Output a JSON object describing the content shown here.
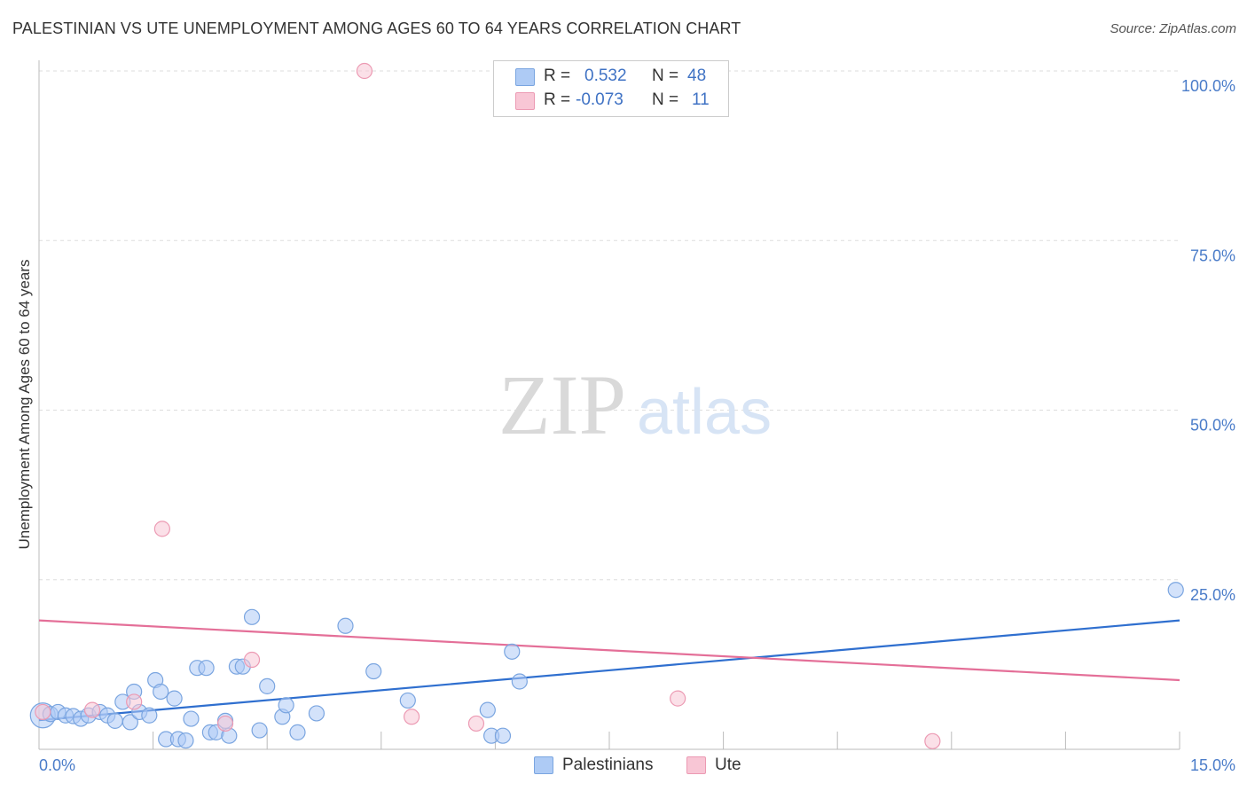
{
  "header": {
    "title": "PALESTINIAN VS UTE UNEMPLOYMENT AMONG AGES 60 TO 64 YEARS CORRELATION CHART",
    "source": "Source: ZipAtlas.com"
  },
  "watermark": {
    "zip": "ZIP",
    "atlas": "atlas"
  },
  "colors": {
    "blue_fill": "#aecbf5",
    "blue_stroke": "#7aa5e0",
    "blue_line": "#2f6fcf",
    "pink_fill": "#f8c6d5",
    "pink_stroke": "#ec9ab3",
    "pink_line": "#e46f98",
    "tick_text": "#4a7cc9",
    "grid": "#dddddd"
  },
  "legend": {
    "series": [
      {
        "r_label": "R =",
        "r_value": "0.532",
        "n_label": "N =",
        "n_value": "48"
      },
      {
        "r_label": "R =",
        "r_value": "-0.073",
        "n_label": "N =",
        "n_value": "11"
      }
    ],
    "bottom": [
      "Palestinians",
      "Ute"
    ]
  },
  "chart_data": {
    "type": "scatter",
    "title": "PALESTINIAN VS UTE UNEMPLOYMENT AMONG AGES 60 TO 64 YEARS CORRELATION CHART",
    "xlabel": "",
    "ylabel": "Unemployment Among Ages 60 to 64 years",
    "xlim": [
      0,
      15
    ],
    "ylim": [
      0,
      100
    ],
    "x_tick_labels": [
      "0.0%",
      "15.0%"
    ],
    "y_ticks": [
      25,
      50,
      75,
      100
    ],
    "y_tick_labels": [
      "25.0%",
      "50.0%",
      "75.0%",
      "100.0%"
    ],
    "grid": true,
    "legend_position": "top-center",
    "series": [
      {
        "name": "Palestinians",
        "r": 0.532,
        "n": 48,
        "trend": {
          "x": [
            0.0,
            15.0
          ],
          "y": [
            4.3,
            19.0
          ]
        },
        "points": [
          {
            "x": 0.05,
            "y": 5.0,
            "size": "large"
          },
          {
            "x": 0.15,
            "y": 5.2
          },
          {
            "x": 0.25,
            "y": 5.5
          },
          {
            "x": 0.35,
            "y": 5.0
          },
          {
            "x": 0.45,
            "y": 4.9
          },
          {
            "x": 0.55,
            "y": 4.5
          },
          {
            "x": 0.65,
            "y": 5.0
          },
          {
            "x": 0.8,
            "y": 5.5
          },
          {
            "x": 0.9,
            "y": 5.0
          },
          {
            "x": 1.0,
            "y": 4.2
          },
          {
            "x": 1.1,
            "y": 7.0
          },
          {
            "x": 1.2,
            "y": 4.0
          },
          {
            "x": 1.25,
            "y": 8.5
          },
          {
            "x": 1.32,
            "y": 5.5
          },
          {
            "x": 1.45,
            "y": 5.0
          },
          {
            "x": 1.53,
            "y": 10.2
          },
          {
            "x": 1.6,
            "y": 8.5
          },
          {
            "x": 1.67,
            "y": 1.5
          },
          {
            "x": 1.78,
            "y": 7.5
          },
          {
            "x": 1.83,
            "y": 1.5
          },
          {
            "x": 1.93,
            "y": 1.3
          },
          {
            "x": 2.0,
            "y": 4.5
          },
          {
            "x": 2.08,
            "y": 12.0
          },
          {
            "x": 2.2,
            "y": 12.0
          },
          {
            "x": 2.25,
            "y": 2.5
          },
          {
            "x": 2.33,
            "y": 2.5
          },
          {
            "x": 2.45,
            "y": 4.2
          },
          {
            "x": 2.5,
            "y": 2.0
          },
          {
            "x": 2.6,
            "y": 12.2
          },
          {
            "x": 2.68,
            "y": 12.2
          },
          {
            "x": 2.8,
            "y": 19.5
          },
          {
            "x": 2.9,
            "y": 2.8
          },
          {
            "x": 3.0,
            "y": 9.3
          },
          {
            "x": 3.2,
            "y": 4.8
          },
          {
            "x": 3.25,
            "y": 6.5
          },
          {
            "x": 3.4,
            "y": 2.5
          },
          {
            "x": 3.65,
            "y": 5.3
          },
          {
            "x": 4.03,
            "y": 18.2
          },
          {
            "x": 4.4,
            "y": 11.5
          },
          {
            "x": 4.85,
            "y": 7.2
          },
          {
            "x": 5.9,
            "y": 5.8
          },
          {
            "x": 5.95,
            "y": 2.0
          },
          {
            "x": 6.1,
            "y": 2.0
          },
          {
            "x": 6.22,
            "y": 14.4
          },
          {
            "x": 6.32,
            "y": 10.0
          },
          {
            "x": 14.95,
            "y": 23.5
          }
        ]
      },
      {
        "name": "Ute",
        "r": -0.073,
        "n": 11,
        "trend": {
          "x": [
            0.0,
            15.0
          ],
          "y": [
            19.0,
            10.2
          ]
        },
        "points": [
          {
            "x": 0.05,
            "y": 5.5
          },
          {
            "x": 0.7,
            "y": 5.8
          },
          {
            "x": 1.25,
            "y": 7.0
          },
          {
            "x": 1.62,
            "y": 32.5
          },
          {
            "x": 2.45,
            "y": 3.8
          },
          {
            "x": 2.8,
            "y": 13.2
          },
          {
            "x": 4.28,
            "y": 100.0
          },
          {
            "x": 4.9,
            "y": 4.8
          },
          {
            "x": 5.75,
            "y": 3.8
          },
          {
            "x": 8.4,
            "y": 7.5
          },
          {
            "x": 11.75,
            "y": 1.2
          }
        ]
      }
    ]
  }
}
